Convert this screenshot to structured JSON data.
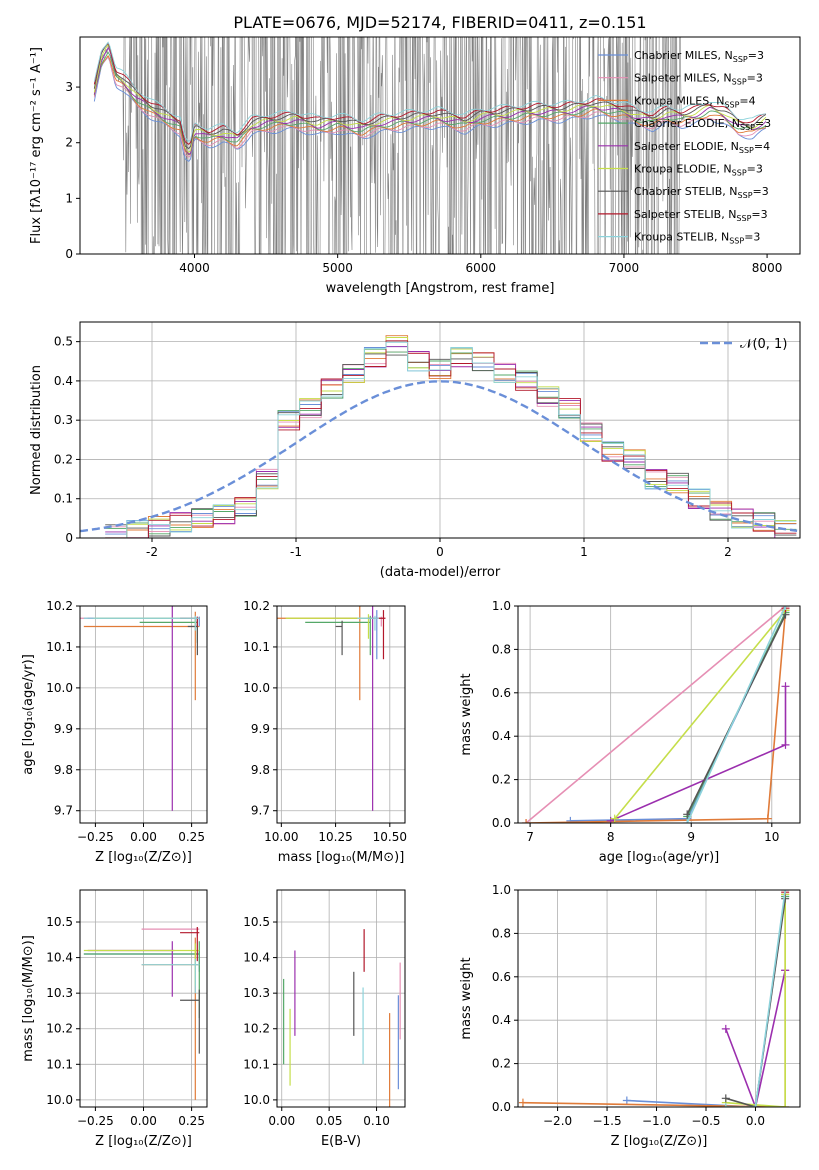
{
  "figure_title": "PLATE=0676, MJD=52174, FIBERID=0411, z=0.151",
  "palette": [
    "#6a8fd8",
    "#e68fb4",
    "#e07b39",
    "#55a868",
    "#9b2fae",
    "#c5de4a",
    "#555555",
    "#b2182b",
    "#8dd3db"
  ],
  "chart_data": [
    {
      "id": "spectrum",
      "type": "line",
      "xlabel": "wavelength [Angstrom, rest frame]",
      "ylabel": "Flux [fλ10⁻¹⁷ erg cm⁻² s⁻¹ A⁻¹]",
      "xlim": [
        3200,
        8230
      ],
      "ylim": [
        0,
        3.9
      ],
      "xticks": [
        4000,
        5000,
        6000,
        7000,
        8000
      ],
      "yticks": [
        0,
        1,
        2,
        3
      ],
      "grid": false,
      "legend_position": "top-right",
      "data_color": "#808080",
      "models": [
        {
          "name": "Chabrier MILES, N_SSP=3",
          "label_main": "Chabrier MILES, N",
          "label_sub": "SSP",
          "label_end": "=3",
          "color": "#6a8fd8"
        },
        {
          "name": "Salpeter MILES, N_SSP=3",
          "label_main": "Salpeter MILES, N",
          "label_sub": "SSP",
          "label_end": "=3",
          "color": "#e68fb4"
        },
        {
          "name": "Kroupa MILES, N_SSP=4",
          "label_main": "Kroupa MILES, N",
          "label_sub": "SSP",
          "label_end": "=4",
          "color": "#e07b39"
        },
        {
          "name": "Chabrier ELODIE, N_SSP=3",
          "label_main": "Chabrier ELODIE, N",
          "label_sub": "SSP",
          "label_end": "=3",
          "color": "#55a868"
        },
        {
          "name": "Salpeter ELODIE, N_SSP=4",
          "label_main": "Salpeter ELODIE, N",
          "label_sub": "SSP",
          "label_end": "=4",
          "color": "#9b2fae"
        },
        {
          "name": "Kroupa ELODIE, N_SSP=3",
          "label_main": "Kroupa ELODIE, N",
          "label_sub": "SSP",
          "label_end": "=3",
          "color": "#c5de4a"
        },
        {
          "name": "Chabrier STELIB, N_SSP=3",
          "label_main": "Chabrier STELIB, N",
          "label_sub": "SSP",
          "label_end": "=3",
          "color": "#555555"
        },
        {
          "name": "Salpeter STELIB, N_SSP=3",
          "label_main": "Salpeter STELIB, N",
          "label_sub": "SSP",
          "label_end": "=3",
          "color": "#b2182b"
        },
        {
          "name": "Kroupa STELIB, N_SSP=3",
          "label_main": "Kroupa STELIB, N",
          "label_sub": "SSP",
          "label_end": "=3",
          "color": "#8dd3db"
        }
      ],
      "model_curve": {
        "x": [
          3300,
          3350,
          3400,
          3450,
          3500,
          3600,
          3700,
          3800,
          3900,
          3933,
          3968,
          4000,
          4100,
          4200,
          4300,
          4400,
          4500,
          4700,
          4861,
          5000,
          5175,
          5300,
          5500,
          5700,
          5890,
          6000,
          6200,
          6400,
          6563,
          6700,
          6800,
          6900,
          7000,
          7100,
          7200,
          7300,
          7400,
          7500,
          7600,
          7700,
          7800,
          7900,
          8000
        ],
        "y": [
          2.9,
          3.5,
          3.7,
          3.2,
          3.1,
          2.8,
          2.6,
          2.45,
          2.3,
          1.9,
          1.8,
          2.2,
          2.1,
          2.15,
          2.05,
          2.3,
          2.35,
          2.4,
          2.3,
          2.35,
          2.25,
          2.35,
          2.4,
          2.45,
          2.35,
          2.45,
          2.5,
          2.55,
          2.55,
          2.6,
          2.65,
          2.6,
          2.55,
          2.45,
          2.4,
          2.5,
          2.45,
          2.5,
          2.6,
          2.5,
          2.3,
          2.25,
          2.4
        ]
      },
      "noise_region_x": [
        3500,
        7400
      ]
    },
    {
      "id": "residuals",
      "type": "step",
      "xlabel": "(data-model)/error",
      "ylabel": "Normed distribution",
      "xlim": [
        -2.5,
        2.5
      ],
      "ylim": [
        0,
        0.55
      ],
      "xticks": [
        -2,
        -1,
        0,
        1,
        2
      ],
      "yticks": [
        0.0,
        0.1,
        0.2,
        0.3,
        0.4,
        0.5
      ],
      "grid": true,
      "legend_position": "top-right",
      "reference": {
        "name_main": "𝒩(0, 1)",
        "color": "#6a8fd8"
      },
      "bin_centers": [
        -2.25,
        -2.1,
        -1.95,
        -1.8,
        -1.65,
        -1.5,
        -1.35,
        -1.2,
        -1.05,
        -0.9,
        -0.75,
        -0.6,
        -0.45,
        -0.3,
        -0.15,
        0.0,
        0.15,
        0.3,
        0.45,
        0.6,
        0.75,
        0.9,
        1.05,
        1.2,
        1.35,
        1.5,
        1.65,
        1.8,
        1.95,
        2.1,
        2.25,
        2.4
      ],
      "hist_values": [
        0.01,
        0.02,
        0.03,
        0.04,
        0.05,
        0.06,
        0.08,
        0.15,
        0.3,
        0.33,
        0.38,
        0.42,
        0.46,
        0.49,
        0.45,
        0.43,
        0.46,
        0.45,
        0.42,
        0.4,
        0.36,
        0.33,
        0.27,
        0.22,
        0.2,
        0.15,
        0.14,
        0.1,
        0.07,
        0.05,
        0.04,
        0.02
      ]
    },
    {
      "id": "age_vs_Z",
      "type": "scatter",
      "xlabel": "Z [log₁₀(Z/Z⊙)]",
      "ylabel": "age  [log₁₀(age/yr)]",
      "xlim": [
        -0.33,
        0.33
      ],
      "ylim": [
        9.67,
        10.2
      ],
      "xticks": [
        -0.25,
        0.0,
        0.25
      ],
      "yticks": [
        9.7,
        9.8,
        9.9,
        10.0,
        10.1,
        10.2
      ],
      "xtick_labels": [
        "−0.25",
        "0.00",
        "0.25"
      ],
      "ytick_labels": [
        "9.7",
        "9.8",
        "9.9",
        "10.0",
        "10.1",
        "10.2"
      ],
      "grid": true,
      "points": [
        {
          "x": 0.29,
          "y": 10.17,
          "xerr": 0.6,
          "yerr": 0.02,
          "series": 0
        },
        {
          "x": 0.22,
          "y": 10.17,
          "xerr": 0.55,
          "yerr": 0.0,
          "series": 1
        },
        {
          "x": 0.29,
          "y": 10.15,
          "xerr": 0.6,
          "yerr": 0.18,
          "series": 2
        },
        {
          "x": 0.28,
          "y": 10.16,
          "xerr": 0.3,
          "yerr": 0.05,
          "series": 3
        },
        {
          "x": 0.16,
          "y": 10.17,
          "xerr": 0.45,
          "yerr": 0.47,
          "series": 4
        },
        {
          "x": 0.29,
          "y": 10.17,
          "xerr": 0.55,
          "yerr": 0.02,
          "series": 5
        },
        {
          "x": 0.28,
          "y": 10.15,
          "xerr": 0.05,
          "yerr": 0.07,
          "series": 6
        },
        {
          "x": 0.29,
          "y": 10.17,
          "xerr": 0.1,
          "yerr": 0.02,
          "series": 7
        },
        {
          "x": 0.29,
          "y": 10.17,
          "xerr": 0.6,
          "yerr": 0.03,
          "series": 8
        }
      ]
    },
    {
      "id": "age_vs_mass",
      "type": "scatter",
      "xlabel": "mass [log₁₀(M/M⊙)]",
      "ylabel": "",
      "xlim": [
        9.98,
        10.57
      ],
      "ylim": [
        9.67,
        10.2
      ],
      "xticks": [
        10.0,
        10.25,
        10.5
      ],
      "yticks": [
        9.7,
        9.8,
        9.9,
        10.0,
        10.1,
        10.2
      ],
      "xtick_labels": [
        "10.00",
        "10.25",
        "10.50"
      ],
      "ytick_labels": [
        "9.7",
        "9.8",
        "9.9",
        "10.0",
        "10.1",
        "10.2"
      ],
      "grid": true,
      "points": [
        {
          "x": 10.44,
          "y": 10.17,
          "xerr": 0.2,
          "yerr": 0.1,
          "series": 0
        },
        {
          "x": 10.47,
          "y": 10.17,
          "xerr": 0.1,
          "yerr": 0.02,
          "series": 1
        },
        {
          "x": 10.38,
          "y": 10.17,
          "xerr": 0.4,
          "yerr": 0.2,
          "series": 2
        },
        {
          "x": 10.41,
          "y": 10.16,
          "xerr": 0.3,
          "yerr": 0.08,
          "series": 3
        },
        {
          "x": 10.43,
          "y": 10.17,
          "xerr": 0.05,
          "yerr": 0.47,
          "series": 4
        },
        {
          "x": 10.42,
          "y": 10.17,
          "xerr": 0.4,
          "yerr": 0.05,
          "series": 5
        },
        {
          "x": 10.28,
          "y": 10.15,
          "xerr": 0.03,
          "yerr": 0.07,
          "series": 6
        },
        {
          "x": 10.48,
          "y": 10.17,
          "xerr": 0.08,
          "yerr": 0.1,
          "series": 7
        },
        {
          "x": 10.45,
          "y": 10.17,
          "xerr": 0.1,
          "yerr": 0.03,
          "series": 8
        }
      ]
    },
    {
      "id": "massweight_vs_age",
      "type": "line",
      "xlabel": "age  [log₁₀(age/yr)]",
      "ylabel": "mass weight",
      "xlim": [
        6.85,
        10.35
      ],
      "ylim": [
        0,
        1.0
      ],
      "xticks": [
        7,
        8,
        9,
        10
      ],
      "yticks": [
        0.0,
        0.2,
        0.4,
        0.6,
        0.8,
        1.0
      ],
      "xtick_labels": [
        "7",
        "8",
        "9",
        "10"
      ],
      "ytick_labels": [
        "0.0",
        "0.2",
        "0.4",
        "0.6",
        "0.8",
        "1.0"
      ],
      "grid": true,
      "series": [
        {
          "x": [
            7.5,
            8.95,
            10.17
          ],
          "y": [
            0.01,
            0.02,
            0.97
          ],
          "series": 0
        },
        {
          "x": [
            6.95,
            10.17
          ],
          "y": [
            0.0,
            1.0
          ],
          "series": 1
        },
        {
          "x": [
            6.95,
            9.95,
            10.17
          ],
          "y": [
            0.0,
            0.02,
            0.98
          ],
          "series": 2
        },
        {
          "x": [
            8.95,
            10.17
          ],
          "y": [
            0.03,
            0.97
          ],
          "series": 3
        },
        {
          "x": [
            8.0,
            10.17,
            10.17
          ],
          "y": [
            0.01,
            0.36,
            0.63
          ],
          "series": 4
        },
        {
          "x": [
            8.05,
            10.17
          ],
          "y": [
            0.02,
            0.98
          ],
          "series": 5
        },
        {
          "x": [
            8.95,
            10.17
          ],
          "y": [
            0.04,
            0.96
          ],
          "series": 6
        },
        {
          "x": [
            10.17
          ],
          "y": [
            0.99
          ],
          "series": 7
        },
        {
          "x": [
            8.95,
            10.17
          ],
          "y": [
            0.0,
            1.0
          ],
          "series": 8
        }
      ]
    },
    {
      "id": "mass_vs_Z",
      "type": "scatter",
      "xlabel": "Z [log₁₀(Z/Z⊙)]",
      "ylabel": "mass [log₁₀(M/M⊙)]",
      "xlim": [
        -0.33,
        0.33
      ],
      "ylim": [
        9.98,
        10.59
      ],
      "xticks": [
        -0.25,
        0.0,
        0.25
      ],
      "yticks": [
        10.0,
        10.1,
        10.2,
        10.3,
        10.4,
        10.5
      ],
      "xtick_labels": [
        "−0.25",
        "0.00",
        "0.25"
      ],
      "ytick_labels": [
        "10.0",
        "10.1",
        "10.2",
        "10.3",
        "10.4",
        "10.5"
      ],
      "grid": true,
      "points": [
        {
          "x": 0.29,
          "y": 10.41,
          "xerr": 0.6,
          "yerr": 0.05,
          "series": 0
        },
        {
          "x": 0.29,
          "y": 10.48,
          "xerr": 0.3,
          "yerr": 0.02,
          "series": 1
        },
        {
          "x": 0.29,
          "y": 10.38,
          "xerr": 0.3,
          "yerr": 0.38,
          "series": 2
        },
        {
          "x": 0.29,
          "y": 10.41,
          "xerr": 0.6,
          "yerr": 0.18,
          "series": 3
        },
        {
          "x": 0.16,
          "y": 10.42,
          "xerr": 0.45,
          "yerr": 0.13,
          "series": 4
        },
        {
          "x": 0.29,
          "y": 10.42,
          "xerr": 0.6,
          "yerr": 0.1,
          "series": 5
        },
        {
          "x": 0.29,
          "y": 10.28,
          "xerr": 0.1,
          "yerr": 0.15,
          "series": 6
        },
        {
          "x": 0.29,
          "y": 10.47,
          "xerr": 0.1,
          "yerr": 0.08,
          "series": 7
        },
        {
          "x": 0.29,
          "y": 10.38,
          "xerr": 0.3,
          "yerr": 0.08,
          "series": 8
        }
      ]
    },
    {
      "id": "mass_vs_ebv",
      "type": "scatter",
      "xlabel": "E(B-V)",
      "ylabel": "",
      "xlim": [
        -0.005,
        0.13
      ],
      "ylim": [
        9.98,
        10.59
      ],
      "xticks": [
        0.0,
        0.05,
        0.1
      ],
      "yticks": [
        10.0,
        10.1,
        10.2,
        10.3,
        10.4,
        10.5
      ],
      "xtick_labels": [
        "0.00",
        "0.05",
        "0.10"
      ],
      "ytick_labels": [
        "10.0",
        "10.1",
        "10.2",
        "10.3",
        "10.4",
        "10.5"
      ],
      "grid": true,
      "points": [
        {
          "x": 0.123,
          "y": 10.25,
          "yerr": 0.22,
          "series": 0
        },
        {
          "x": 0.127,
          "y": 10.35,
          "yerr": 0.18,
          "series": 1
        },
        {
          "x": 0.118,
          "y": 10.2,
          "yerr": 0.22,
          "series": 2
        },
        {
          "x": 0.002,
          "y": 10.3,
          "yerr": 0.2,
          "series": 3
        },
        {
          "x": 0.016,
          "y": 10.38,
          "yerr": 0.2,
          "series": 4
        },
        {
          "x": 0.013,
          "y": 10.22,
          "yerr": 0.18,
          "series": 5
        },
        {
          "x": 0.076,
          "y": 10.33,
          "yerr": 0.15,
          "series": 6
        },
        {
          "x": 0.089,
          "y": 10.46,
          "yerr": 0.1,
          "series": 7
        },
        {
          "x": 0.09,
          "y": 10.28,
          "yerr": 0.18,
          "series": 8
        }
      ]
    },
    {
      "id": "massweight_vs_Z",
      "type": "line",
      "xlabel": "Z [log₁₀(Z/Z⊙)]",
      "ylabel": "mass weight",
      "xlim": [
        -2.4,
        0.45
      ],
      "ylim": [
        0,
        1.0
      ],
      "xticks": [
        -2.0,
        -1.5,
        -1.0,
        -0.5,
        0.0
      ],
      "yticks": [
        0.0,
        0.2,
        0.4,
        0.6,
        0.8,
        1.0
      ],
      "xtick_labels": [
        "−2.0",
        "−1.5",
        "−1.0",
        "−0.5",
        "0.0"
      ],
      "ytick_labels": [
        "0.0",
        "0.2",
        "0.4",
        "0.6",
        "0.8",
        "1.0"
      ],
      "grid": true,
      "series": [
        {
          "x": [
            -1.3,
            0.0,
            0.3
          ],
          "y": [
            0.03,
            0.0,
            0.97
          ],
          "series": 0
        },
        {
          "x": [
            0.3
          ],
          "y": [
            1.0
          ],
          "series": 1
        },
        {
          "x": [
            -2.35,
            0.3,
            0.3
          ],
          "y": [
            0.02,
            0.0,
            0.98
          ],
          "series": 2
        },
        {
          "x": [
            0.3
          ],
          "y": [
            0.97
          ],
          "series": 3
        },
        {
          "x": [
            -0.3,
            0.0,
            0.3,
            0.3
          ],
          "y": [
            0.36,
            0.0,
            0.63,
            0.63
          ],
          "series": 4
        },
        {
          "x": [
            -0.3,
            0.3,
            0.3
          ],
          "y": [
            0.02,
            0.0,
            0.98
          ],
          "series": 5
        },
        {
          "x": [
            -0.3,
            0.0,
            0.3
          ],
          "y": [
            0.04,
            0.0,
            0.96
          ],
          "series": 6
        },
        {
          "x": [
            0.3
          ],
          "y": [
            0.99
          ],
          "series": 7
        },
        {
          "x": [
            -0.3,
            0.0,
            0.3
          ],
          "y": [
            0.0,
            0.0,
            1.0
          ],
          "series": 8
        }
      ]
    }
  ]
}
